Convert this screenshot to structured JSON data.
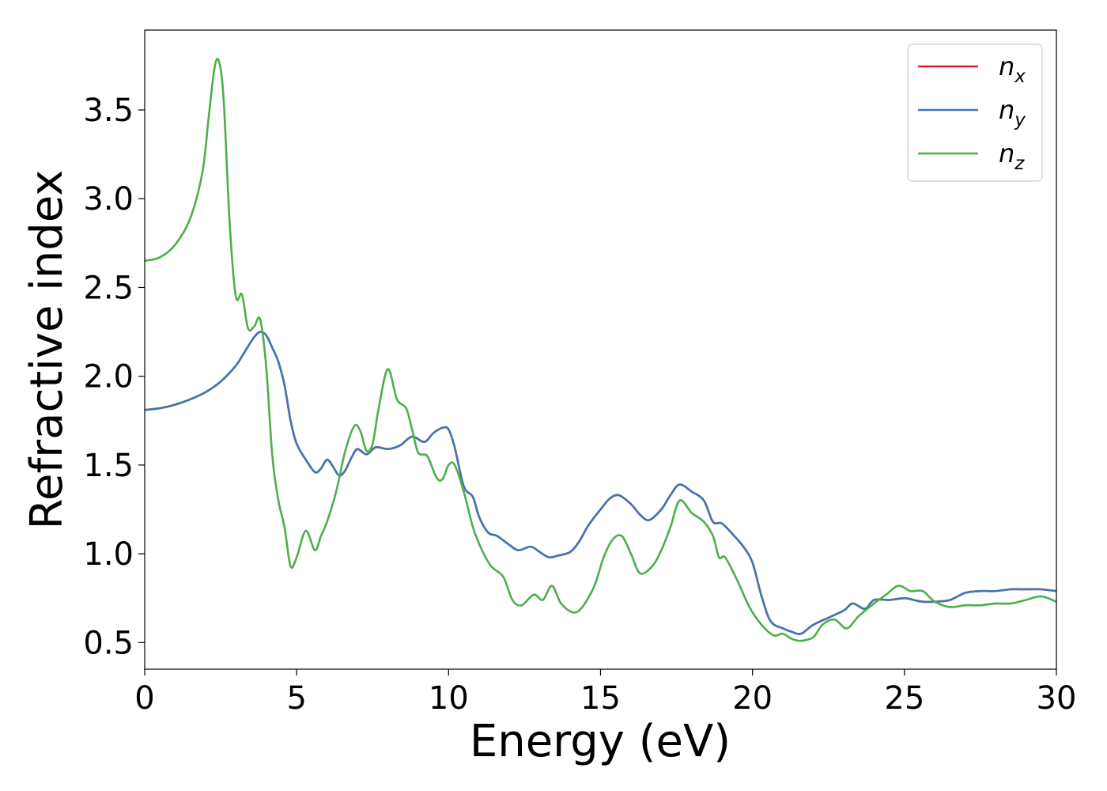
{
  "chart_data": {
    "type": "line",
    "title": "",
    "xlabel": "Energy (eV)",
    "ylabel": "Refractive index",
    "xlim": [
      0,
      30
    ],
    "ylim": [
      0.35,
      3.95
    ],
    "x_ticks": [
      0,
      5,
      10,
      15,
      20,
      25,
      30
    ],
    "x_tick_labels": [
      "0",
      "5",
      "10",
      "15",
      "20",
      "25",
      "30"
    ],
    "y_ticks": [
      0.5,
      1.0,
      1.5,
      2.0,
      2.5,
      3.0,
      3.5
    ],
    "y_tick_labels": [
      "0.5",
      "1.0",
      "1.5",
      "2.0",
      "2.5",
      "3.0",
      "3.5"
    ],
    "grid": false,
    "legend_position": "top-right",
    "series": [
      {
        "name": "n_x",
        "color": "#e41a1c",
        "x": [
          0,
          0.5,
          1,
          1.5,
          2,
          2.5,
          3,
          3.3,
          3.6,
          3.8,
          4,
          4.2,
          4.4,
          4.6,
          4.8,
          5,
          5.3,
          5.6,
          5.8,
          6,
          6.2,
          6.4,
          6.6,
          6.8,
          7,
          7.3,
          7.6,
          8,
          8.4,
          8.8,
          9.2,
          9.5,
          9.8,
          10,
          10.2,
          10.5,
          10.8,
          11,
          11.3,
          11.6,
          12,
          12.3,
          12.7,
          13,
          13.3,
          13.6,
          14,
          14.3,
          14.6,
          15,
          15.3,
          15.6,
          16,
          16.3,
          16.6,
          17,
          17.3,
          17.6,
          18,
          18.4,
          18.7,
          19,
          19.4,
          19.7,
          20,
          20.3,
          20.6,
          21,
          21.3,
          21.6,
          22,
          22.5,
          23,
          23.3,
          23.7,
          24,
          24.5,
          25,
          25.3,
          25.6,
          26,
          26.5,
          27,
          27.5,
          28,
          28.5,
          29,
          29.5,
          30
        ],
        "y": [
          1.81,
          1.82,
          1.84,
          1.87,
          1.91,
          1.97,
          2.06,
          2.14,
          2.22,
          2.25,
          2.23,
          2.16,
          2.08,
          1.95,
          1.75,
          1.62,
          1.53,
          1.46,
          1.48,
          1.53,
          1.49,
          1.44,
          1.47,
          1.54,
          1.59,
          1.56,
          1.6,
          1.59,
          1.61,
          1.66,
          1.63,
          1.68,
          1.71,
          1.7,
          1.6,
          1.38,
          1.32,
          1.21,
          1.12,
          1.1,
          1.05,
          1.02,
          1.04,
          1.01,
          0.98,
          0.99,
          1.01,
          1.07,
          1.16,
          1.25,
          1.31,
          1.33,
          1.28,
          1.22,
          1.19,
          1.25,
          1.33,
          1.39,
          1.35,
          1.3,
          1.18,
          1.17,
          1.1,
          1.04,
          0.95,
          0.76,
          0.62,
          0.58,
          0.56,
          0.55,
          0.6,
          0.64,
          0.68,
          0.72,
          0.69,
          0.74,
          0.74,
          0.75,
          0.74,
          0.73,
          0.73,
          0.74,
          0.78,
          0.79,
          0.79,
          0.8,
          0.8,
          0.8,
          0.79
        ]
      },
      {
        "name": "n_y",
        "color": "#3f78b2",
        "x": [
          0,
          0.5,
          1,
          1.5,
          2,
          2.5,
          3,
          3.3,
          3.6,
          3.8,
          4,
          4.2,
          4.4,
          4.6,
          4.8,
          5,
          5.3,
          5.6,
          5.8,
          6,
          6.2,
          6.4,
          6.6,
          6.8,
          7,
          7.3,
          7.6,
          8,
          8.4,
          8.8,
          9.2,
          9.5,
          9.8,
          10,
          10.2,
          10.5,
          10.8,
          11,
          11.3,
          11.6,
          12,
          12.3,
          12.7,
          13,
          13.3,
          13.6,
          14,
          14.3,
          14.6,
          15,
          15.3,
          15.6,
          16,
          16.3,
          16.6,
          17,
          17.3,
          17.6,
          18,
          18.4,
          18.7,
          19,
          19.4,
          19.7,
          20,
          20.3,
          20.6,
          21,
          21.3,
          21.6,
          22,
          22.5,
          23,
          23.3,
          23.7,
          24,
          24.5,
          25,
          25.3,
          25.6,
          26,
          26.5,
          27,
          27.5,
          28,
          28.5,
          29,
          29.5,
          30
        ],
        "y": [
          1.81,
          1.82,
          1.84,
          1.87,
          1.91,
          1.97,
          2.06,
          2.14,
          2.22,
          2.25,
          2.23,
          2.16,
          2.08,
          1.95,
          1.75,
          1.62,
          1.53,
          1.46,
          1.48,
          1.53,
          1.49,
          1.44,
          1.47,
          1.54,
          1.59,
          1.56,
          1.6,
          1.59,
          1.61,
          1.66,
          1.63,
          1.68,
          1.71,
          1.7,
          1.6,
          1.38,
          1.32,
          1.21,
          1.12,
          1.1,
          1.05,
          1.02,
          1.04,
          1.01,
          0.98,
          0.99,
          1.01,
          1.07,
          1.16,
          1.25,
          1.31,
          1.33,
          1.28,
          1.22,
          1.19,
          1.25,
          1.33,
          1.39,
          1.35,
          1.3,
          1.18,
          1.17,
          1.1,
          1.04,
          0.95,
          0.76,
          0.62,
          0.58,
          0.56,
          0.55,
          0.6,
          0.64,
          0.68,
          0.72,
          0.69,
          0.74,
          0.74,
          0.75,
          0.74,
          0.73,
          0.73,
          0.74,
          0.78,
          0.79,
          0.79,
          0.8,
          0.8,
          0.8,
          0.79
        ]
      },
      {
        "name": "n_z",
        "color": "#4daf4a",
        "x": [
          0,
          0.5,
          1,
          1.5,
          1.9,
          2.1,
          2.3,
          2.45,
          2.6,
          2.8,
          3.0,
          3.2,
          3.4,
          3.6,
          3.8,
          4.0,
          4.2,
          4.4,
          4.6,
          4.8,
          5.0,
          5.3,
          5.6,
          5.8,
          6.0,
          6.3,
          6.6,
          6.9,
          7.1,
          7.3,
          7.5,
          7.7,
          8.0,
          8.3,
          8.6,
          8.8,
          9.0,
          9.3,
          9.6,
          9.8,
          10.0,
          10.2,
          10.5,
          10.8,
          11.1,
          11.4,
          11.8,
          12.1,
          12.4,
          12.8,
          13.1,
          13.4,
          13.7,
          14.1,
          14.4,
          14.8,
          15.1,
          15.4,
          15.7,
          16.0,
          16.3,
          16.7,
          17.0,
          17.3,
          17.6,
          18.0,
          18.4,
          18.7,
          18.9,
          19.1,
          19.5,
          19.9,
          20.3,
          20.7,
          21.0,
          21.3,
          21.6,
          22.0,
          22.3,
          22.7,
          23.1,
          23.5,
          24.0,
          24.4,
          24.8,
          25.2,
          25.6,
          26.0,
          26.5,
          27.0,
          27.5,
          28.0,
          28.5,
          29.0,
          29.5,
          30
        ],
        "y": [
          2.65,
          2.67,
          2.74,
          2.89,
          3.15,
          3.45,
          3.74,
          3.77,
          3.55,
          2.85,
          2.45,
          2.46,
          2.27,
          2.28,
          2.32,
          2.05,
          1.55,
          1.3,
          1.15,
          0.93,
          0.98,
          1.13,
          1.02,
          1.1,
          1.18,
          1.35,
          1.58,
          1.72,
          1.69,
          1.58,
          1.62,
          1.82,
          2.04,
          1.87,
          1.82,
          1.7,
          1.57,
          1.55,
          1.43,
          1.42,
          1.5,
          1.5,
          1.35,
          1.15,
          1.02,
          0.93,
          0.87,
          0.74,
          0.71,
          0.77,
          0.74,
          0.82,
          0.72,
          0.67,
          0.7,
          0.82,
          0.98,
          1.08,
          1.1,
          1.0,
          0.89,
          0.93,
          1.02,
          1.15,
          1.3,
          1.23,
          1.18,
          1.1,
          0.98,
          0.98,
          0.85,
          0.7,
          0.6,
          0.54,
          0.55,
          0.52,
          0.51,
          0.53,
          0.6,
          0.63,
          0.58,
          0.65,
          0.72,
          0.77,
          0.82,
          0.79,
          0.79,
          0.73,
          0.7,
          0.71,
          0.71,
          0.72,
          0.72,
          0.74,
          0.76,
          0.73
        ]
      }
    ]
  },
  "legend": {
    "items": [
      {
        "base": "n",
        "sub": "x",
        "color": "#e41a1c"
      },
      {
        "base": "n",
        "sub": "y",
        "color": "#3f78b2"
      },
      {
        "base": "n",
        "sub": "z",
        "color": "#4daf4a"
      }
    ]
  }
}
